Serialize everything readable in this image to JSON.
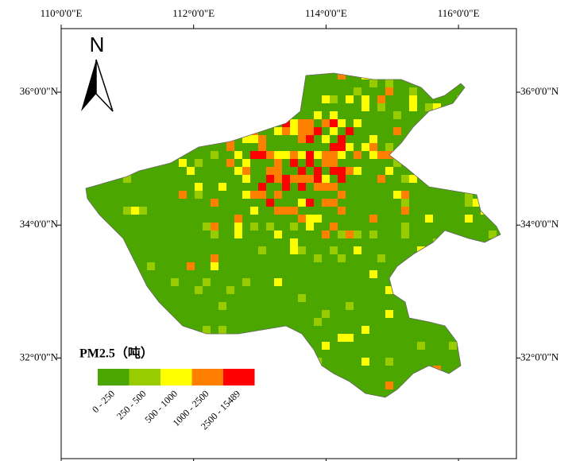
{
  "map": {
    "x_ticks": [
      {
        "value": 110,
        "label": "110°0'0\"E"
      },
      {
        "value": 112,
        "label": "112°0'0\"E"
      },
      {
        "value": 114,
        "label": "114°0'0\"E"
      },
      {
        "value": 116,
        "label": "116°0'0\"E"
      }
    ],
    "y_ticks": [
      {
        "value": 36,
        "label": "36°0'0\"N"
      },
      {
        "value": 34,
        "label": "34°0'0\"N"
      },
      {
        "value": 32,
        "label": "32°0'0\"N"
      }
    ],
    "north": "N",
    "legend": {
      "title": "PM2.5（吨）",
      "classes": [
        {
          "label": "0 - 250",
          "color": "#4ca600"
        },
        {
          "label": "250 - 500",
          "color": "#98cc00"
        },
        {
          "label": "500 - 1000",
          "color": "#ffff00"
        },
        {
          "label": "1000 - 2500",
          "color": "#ff8000"
        },
        {
          "label": "2500 - 15489",
          "color": "#ff0000"
        }
      ]
    }
  }
}
